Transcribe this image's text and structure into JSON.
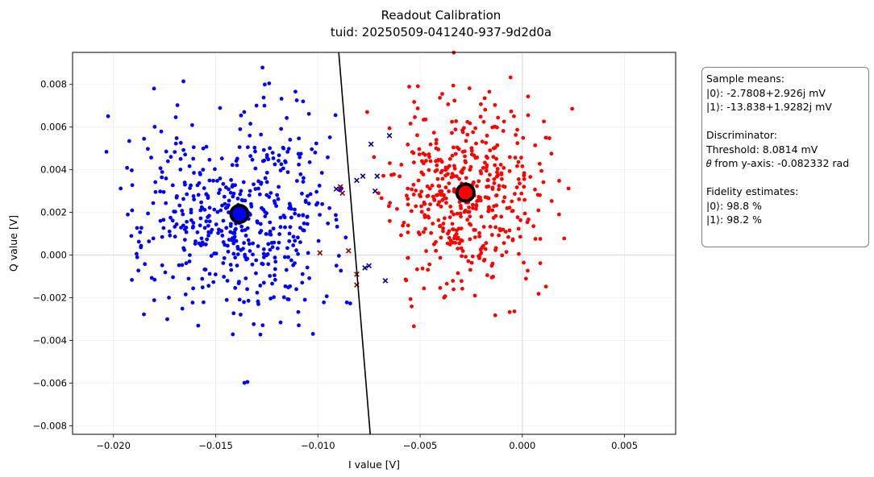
{
  "chart_data": {
    "type": "scatter",
    "title": "Readout Calibration",
    "subtitle": "tuid: 20250509-041240-937-9d2d0a",
    "xlabel": "I value [V]",
    "ylabel": "Q value [V]",
    "xlim": [
      -0.022,
      0.0075
    ],
    "ylim": [
      -0.0084,
      0.0095
    ],
    "x_ticks": [
      -0.02,
      -0.015,
      -0.01,
      -0.005,
      0.0,
      0.005
    ],
    "x_tick_labels": [
      "−0.020",
      "−0.015",
      "−0.010",
      "−0.005",
      "0.000",
      "0.005"
    ],
    "y_ticks": [
      -0.008,
      -0.006,
      -0.004,
      -0.002,
      0.0,
      0.002,
      0.004,
      0.006,
      0.008
    ],
    "y_tick_labels": [
      "−0.008",
      "−0.006",
      "−0.004",
      "−0.002",
      "0.000",
      "0.002",
      "0.004",
      "0.006",
      "0.008"
    ],
    "grid": true,
    "colors": {
      "state0": "#ff0000",
      "state1": "#0000ff",
      "misassigned0": "#8b0000",
      "misassigned1": "#00008b",
      "threshold_line": "#000000"
    },
    "series": [
      {
        "state": "|0>",
        "color": "#ff0000",
        "marker": "circle",
        "mean": [
          -0.0027808,
          0.002926
        ],
        "spread": [
          0.0018,
          0.0022
        ],
        "count": 480,
        "seed": 11
      },
      {
        "state": "|1>",
        "color": "#0000ff",
        "marker": "circle",
        "mean": [
          -0.013838,
          0.0019282
        ],
        "spread": [
          0.0025,
          0.0025
        ],
        "count": 520,
        "seed": 7
      },
      {
        "state": "|0> misassigned",
        "color": "#8b0000",
        "marker": "x",
        "points": [
          [
            -0.0089,
            0.0032
          ],
          [
            -0.0088,
            0.0029
          ],
          [
            -0.0081,
            -0.0009
          ],
          [
            -0.0081,
            -0.0014
          ],
          [
            -0.0085,
            0.0002
          ],
          [
            -0.0099,
            0.0001
          ]
        ]
      },
      {
        "state": "|1> misassigned",
        "color": "#00008b",
        "marker": "x",
        "points": [
          [
            -0.0071,
            0.0037
          ],
          [
            -0.0074,
            0.0052
          ],
          [
            -0.0081,
            0.0035
          ],
          [
            -0.0072,
            0.003
          ],
          [
            -0.0078,
            0.0037
          ],
          [
            -0.0065,
            0.0056
          ],
          [
            -0.0077,
            -0.0006
          ],
          [
            -0.0075,
            -0.0005
          ],
          [
            -0.0067,
            -0.0012
          ],
          [
            -0.0091,
            0.0031
          ]
        ]
      }
    ],
    "means": [
      {
        "state": "|0>",
        "x": -0.0027808,
        "y": 0.002926,
        "color": "#ff0000"
      },
      {
        "state": "|1>",
        "x": -0.013838,
        "y": 0.0019282,
        "color": "#0000ff"
      }
    ],
    "threshold_line": {
      "points": [
        [
          -0.00898,
          0.0095
        ],
        [
          -0.00744,
          -0.0084
        ]
      ]
    },
    "info_box": {
      "placement": "right",
      "sample_means_header": "Sample means:",
      "mean0": "|0⟩: -2.7808+2.926j mV",
      "mean1": "|1⟩: -13.838+1.9282j mV",
      "discriminator_header": "Discriminator:",
      "threshold": "Threshold: 8.0814 mV",
      "theta": "𝜃 from y-axis: -0.082332 rad",
      "fidelity_header": "Fidelity estimates:",
      "fidelity0": "|0⟩: 98.8 %",
      "fidelity1": "|1⟩: 98.2 %"
    }
  }
}
